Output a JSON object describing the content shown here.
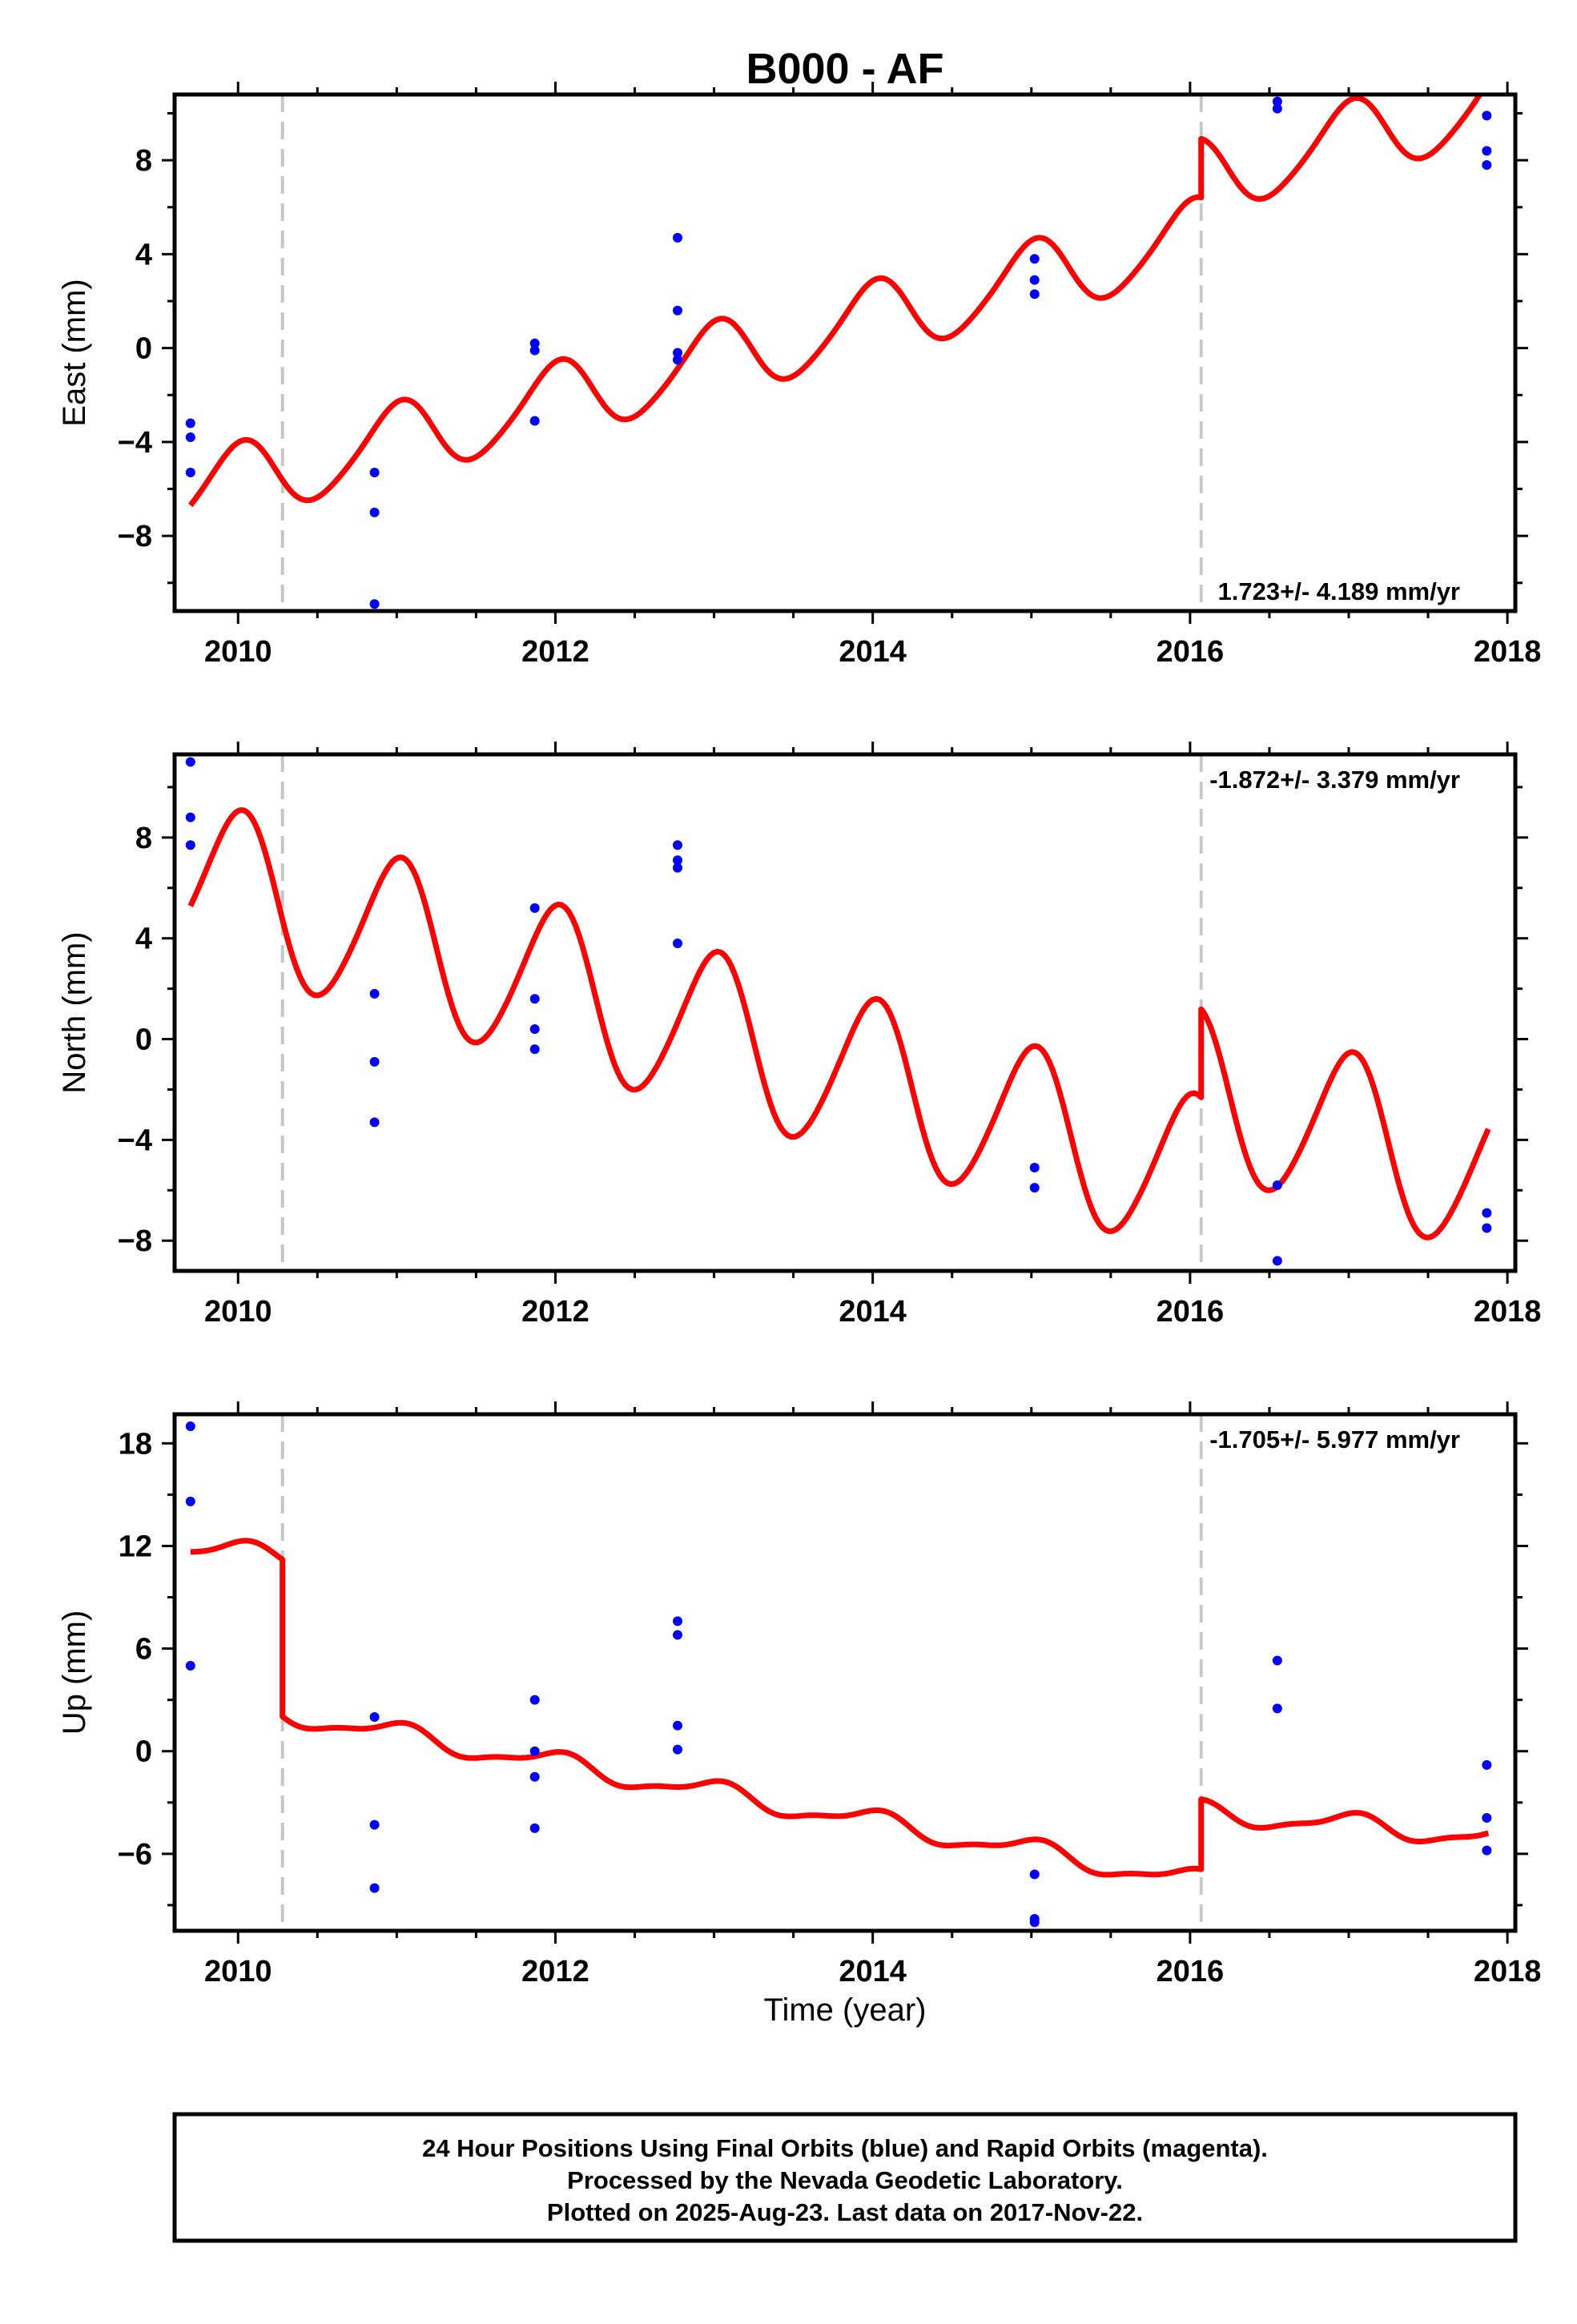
{
  "title": "B000 - AF",
  "colors": {
    "model": "#ff0000",
    "final_orbits": "#0000ff",
    "steps": "#c8c8c8",
    "frame": "#000000"
  },
  "xlabel": "Time (year)",
  "footer": {
    "line1": "24 Hour Positions Using Final Orbits (blue) and Rapid Orbits (magenta).",
    "line2": "Processed by the Nevada Geodetic Laboratory.",
    "line3": "Plotted on 2025-Aug-23. Last data on 2017-Nov-22."
  },
  "chart_data": [
    {
      "type": "scatter",
      "ylabel": "East (mm)",
      "rate_text": "1.723+/- 4.189 mm/yr",
      "xlim": [
        2009.6,
        2018.05
      ],
      "ylim": [
        -11.2,
        10.8
      ],
      "xticks": [
        2010,
        2012,
        2014,
        2016,
        2018
      ],
      "yticks": [
        -8,
        -4,
        0,
        4,
        8
      ],
      "steps": [
        2010.28,
        2016.07
      ],
      "points": {
        "x": [
          2009.7,
          2009.7,
          2009.7,
          2010.86,
          2010.86,
          2010.86,
          2011.87,
          2011.87,
          2011.87,
          2012.77,
          2012.77,
          2012.77,
          2012.77,
          2015.02,
          2015.02,
          2015.02,
          2016.55,
          2016.55,
          2017.87,
          2017.87,
          2017.87
        ],
        "y": [
          -3.2,
          -3.8,
          -5.3,
          -5.3,
          -7.0,
          -10.9,
          0.2,
          -0.1,
          -3.1,
          4.7,
          1.6,
          -0.2,
          -0.5,
          3.8,
          2.9,
          2.3,
          10.5,
          10.2,
          9.9,
          8.4,
          7.8
        ]
      },
      "model": {
        "segments": [
          {
            "start": 2009.7,
            "end": 2010.28,
            "intercept": -5.7,
            "slope": 1.723
          },
          {
            "start": 2010.28,
            "end": 2016.07,
            "intercept": -5.7,
            "slope": 1.723
          },
          {
            "start": 2016.07,
            "end": 2017.88,
            "intercept": -3.2,
            "slope": 1.723
          }
        ],
        "annual": {
          "amplitude": 1.6,
          "phase": 1.55
        },
        "semiannual": {
          "amplitude": 0.2,
          "phase": 0.4
        }
      }
    },
    {
      "type": "scatter",
      "ylabel": "North (mm)",
      "rate_text": "-1.872+/- 3.379 mm/yr",
      "xlim": [
        2009.6,
        2018.05
      ],
      "ylim": [
        -9.2,
        11.3
      ],
      "xticks": [
        2010,
        2012,
        2014,
        2016,
        2018
      ],
      "yticks": [
        -8,
        -4,
        0,
        4,
        8
      ],
      "steps": [
        2010.28,
        2016.07
      ],
      "points": {
        "x": [
          2009.7,
          2009.7,
          2009.7,
          2010.86,
          2010.86,
          2010.86,
          2011.87,
          2011.87,
          2011.87,
          2011.87,
          2012.77,
          2012.77,
          2012.77,
          2012.77,
          2015.02,
          2015.02,
          2016.55,
          2016.55,
          2017.87,
          2017.87
        ],
        "y": [
          11.0,
          8.8,
          7.7,
          1.8,
          -0.9,
          -3.3,
          5.2,
          1.6,
          0.4,
          -0.4,
          7.7,
          7.1,
          6.8,
          3.8,
          -5.1,
          -5.9,
          -5.8,
          -8.8,
          -6.9,
          -7.5
        ]
      },
      "model": {
        "segments": [
          {
            "start": 2009.7,
            "end": 2010.28,
            "intercept": 5.8,
            "slope": -1.872
          },
          {
            "start": 2010.28,
            "end": 2016.07,
            "intercept": 5.8,
            "slope": -1.872
          },
          {
            "start": 2016.07,
            "end": 2017.88,
            "intercept": 9.3,
            "slope": -1.872
          }
        ],
        "annual": {
          "amplitude": 3.2,
          "phase": 1.5
        },
        "semiannual": {
          "amplitude": 0.3,
          "phase": 0.2
        }
      }
    },
    {
      "type": "scatter",
      "ylabel": "Up (mm)",
      "rate_text": "-1.705+/- 5.977 mm/yr",
      "xlim": [
        2009.6,
        2018.05
      ],
      "ylim": [
        -10.5,
        19.7
      ],
      "xticks": [
        2010,
        2012,
        2014,
        2016,
        2018
      ],
      "yticks": [
        -6,
        0,
        6,
        12,
        18
      ],
      "steps": [
        2010.28,
        2016.07
      ],
      "points": {
        "x": [
          2009.7,
          2009.7,
          2009.7,
          2010.86,
          2010.86,
          2010.86,
          2011.87,
          2011.87,
          2011.87,
          2011.87,
          2012.77,
          2012.77,
          2012.77,
          2012.77,
          2015.02,
          2015.02,
          2015.02,
          2016.55,
          2016.55,
          2017.87,
          2017.87,
          2017.87
        ],
        "y": [
          19.0,
          14.6,
          5.0,
          2.0,
          -4.3,
          -8.0,
          3.0,
          0.0,
          -1.5,
          -4.5,
          7.6,
          6.8,
          1.5,
          0.1,
          -7.2,
          -9.8,
          -10.0,
          5.3,
          2.5,
          -0.8,
          -3.9,
          -5.8
        ]
      },
      "model": {
        "segments": [
          {
            "start": 2009.7,
            "end": 2010.28,
            "intercept": 11.6,
            "slope": -0.7
          },
          {
            "start": 2010.28,
            "end": 2016.07,
            "intercept": 2.7,
            "slope": -1.705
          },
          {
            "start": 2016.07,
            "end": 2017.88,
            "intercept": 1.3,
            "slope": -0.8
          }
        ],
        "annual": {
          "amplitude": 0.6,
          "phase": 1.5
        },
        "semiannual": {
          "amplitude": 0.2,
          "phase": 0.3
        }
      }
    }
  ]
}
